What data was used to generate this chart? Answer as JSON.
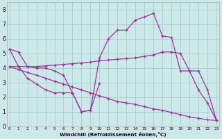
{
  "background_color": "#cce8e8",
  "grid_color": "#aacccc",
  "line_color": "#993399",
  "xlabel": "Windchill (Refroidissement éolien,°C)",
  "ylim": [
    0,
    8.5
  ],
  "xlim": [
    -0.3,
    23.3
  ],
  "yticks": [
    0,
    1,
    2,
    3,
    4,
    5,
    6,
    7,
    8
  ],
  "xticks": [
    0,
    1,
    2,
    3,
    4,
    5,
    6,
    7,
    8,
    9,
    10,
    11,
    12,
    13,
    14,
    15,
    16,
    17,
    18,
    19,
    20,
    21,
    22,
    23
  ],
  "series": [
    {
      "x": [
        0,
        1,
        2,
        3,
        4,
        5,
        6,
        7,
        8,
        9,
        10,
        11,
        12,
        13,
        14,
        15,
        16,
        17,
        18,
        19,
        20,
        21,
        22,
        23
      ],
      "y": [
        5.3,
        5.1,
        4.1,
        4.0,
        4.0,
        3.8,
        3.5,
        2.3,
        1.0,
        1.1,
        4.7,
        6.0,
        6.6,
        6.6,
        7.3,
        7.5,
        7.75,
        6.2,
        6.1,
        3.8,
        3.8,
        2.5,
        1.6,
        0.4
      ]
    },
    {
      "x": [
        0,
        1,
        2,
        3,
        4,
        5,
        6,
        7,
        8,
        9,
        10,
        11,
        12,
        13,
        14,
        15,
        16,
        17,
        18,
        19,
        20,
        21,
        22,
        23
      ],
      "y": [
        4.1,
        4.1,
        4.1,
        4.1,
        4.15,
        4.2,
        4.25,
        4.3,
        4.35,
        4.4,
        4.5,
        4.55,
        4.6,
        4.65,
        4.7,
        4.8,
        4.9,
        5.1,
        5.1,
        5.0,
        3.8,
        3.8,
        2.5,
        0.4
      ]
    },
    {
      "x": [
        0,
        1,
        2,
        3,
        4,
        5,
        6,
        7,
        8,
        9,
        10,
        11,
        12,
        13,
        14,
        15,
        16,
        17,
        18,
        19,
        20,
        21,
        22,
        23
      ],
      "y": [
        4.1,
        3.9,
        3.7,
        3.5,
        3.3,
        3.1,
        2.9,
        2.7,
        2.5,
        2.3,
        2.1,
        1.9,
        1.7,
        1.6,
        1.5,
        1.35,
        1.2,
        1.1,
        0.95,
        0.8,
        0.65,
        0.55,
        0.45,
        0.4
      ]
    },
    {
      "x": [
        0,
        1,
        2,
        3,
        4,
        5,
        6,
        7,
        8,
        9,
        10
      ],
      "y": [
        5.3,
        4.1,
        3.3,
        2.9,
        2.5,
        2.3,
        2.3,
        2.3,
        1.0,
        1.1,
        2.95
      ]
    }
  ]
}
